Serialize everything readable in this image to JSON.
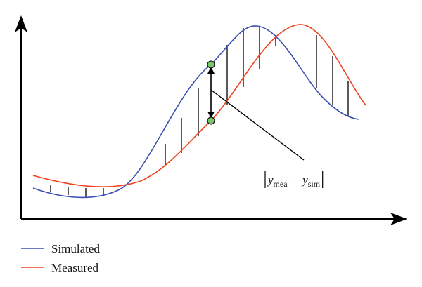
{
  "annotation": {
    "base1": "y",
    "sub1": "mea",
    "operator": "−",
    "base2": "y",
    "sub2": "sim"
  },
  "legend": [
    {
      "label": "Simulated"
    },
    {
      "label": "Measured"
    }
  ]
}
